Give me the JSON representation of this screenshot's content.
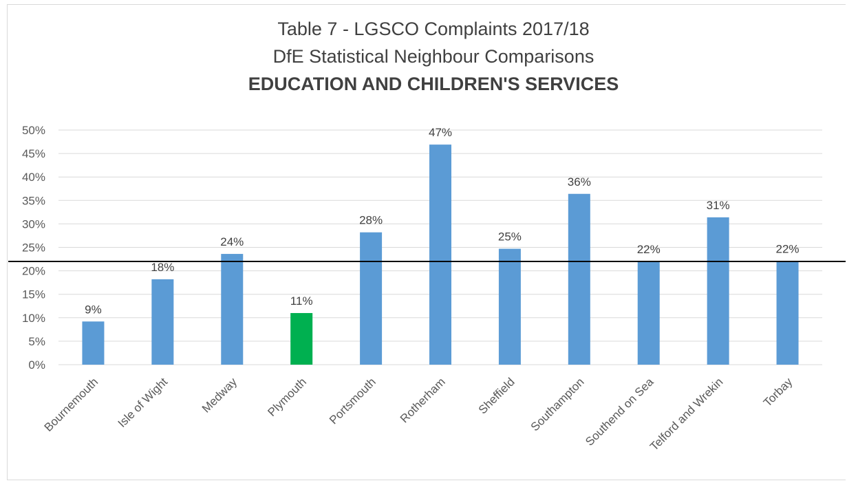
{
  "chart_data": {
    "type": "bar",
    "title_lines": [
      "Table 7 - LGSCO Complaints 2017/18",
      "DfE Statistical Neighbour Comparisons",
      "EDUCATION AND CHILDREN'S SERVICES"
    ],
    "categories": [
      "Bournemouth",
      "Isle of Wight",
      "Medway",
      "Plymouth",
      "Portsmouth",
      "Rotherham",
      "Sheffield",
      "Southampton",
      "Southend on Sea",
      "Telford and Wrekin",
      "Torbay"
    ],
    "values": [
      9.2,
      18.2,
      23.6,
      11.0,
      28.2,
      46.9,
      24.7,
      36.4,
      22.0,
      31.4,
      22.1
    ],
    "data_labels": [
      "9%",
      "18%",
      "24%",
      "11%",
      "28%",
      "47%",
      "25%",
      "36%",
      "22%",
      "31%",
      "22%"
    ],
    "highlight_index": 3,
    "reference_line": 22,
    "ylim": [
      0,
      50
    ],
    "yticks": [
      0,
      5,
      10,
      15,
      20,
      25,
      30,
      35,
      40,
      45,
      50
    ],
    "ytick_labels": [
      "0%",
      "5%",
      "10%",
      "15%",
      "20%",
      "25%",
      "30%",
      "35%",
      "40%",
      "45%",
      "50%"
    ],
    "grid": true,
    "colors": {
      "bar": "#5b9bd5",
      "highlight": "#00b050",
      "reference_line": "#000000",
      "grid": "#d9d9d9"
    }
  }
}
